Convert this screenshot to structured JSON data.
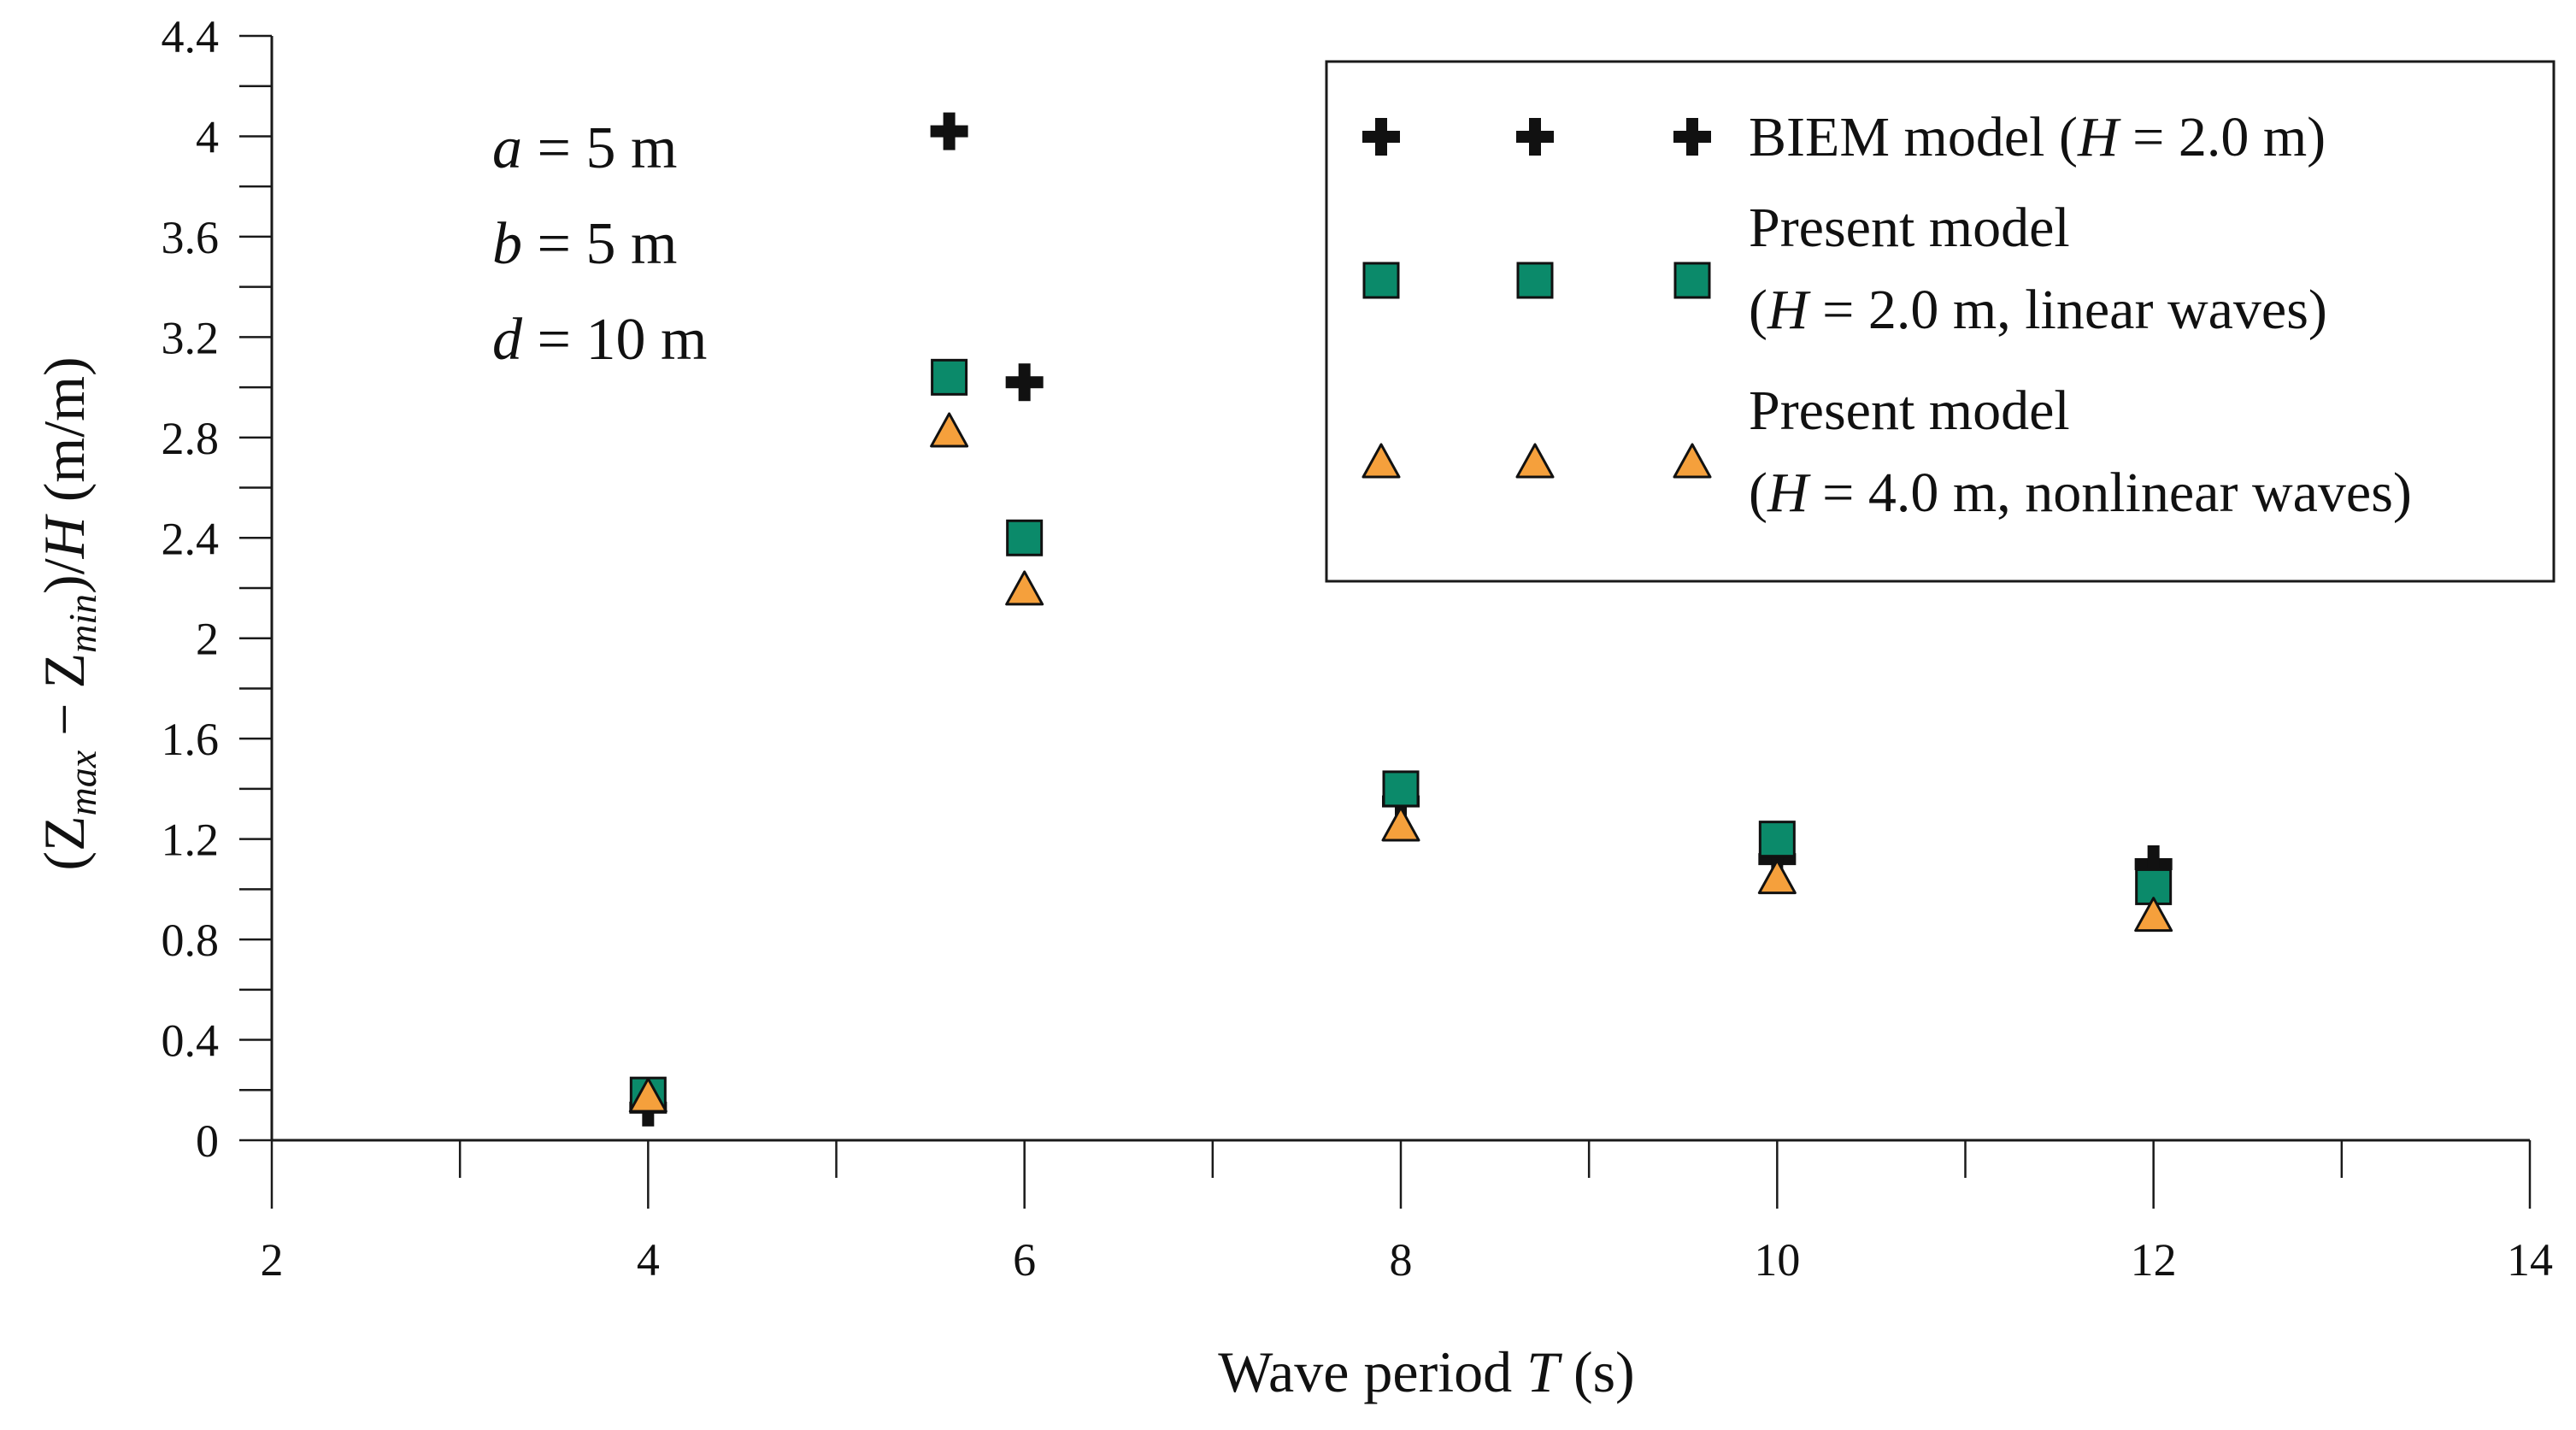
{
  "chart_data": {
    "type": "scatter",
    "title": "",
    "xlabel": {
      "prefix": "Wave period ",
      "var": "T",
      "suffix": " (s)"
    },
    "ylabel": {
      "open": "(Z",
      "max_sub": "max",
      "minus": " − Z",
      "min_sub": "min",
      "close": ")/",
      "var": "H",
      "unit": " (m/m)"
    },
    "xlim": [
      2,
      14
    ],
    "ylim": [
      0,
      4.4
    ],
    "xticks": [
      2,
      4,
      6,
      8,
      10,
      12,
      14
    ],
    "xtick_labels": [
      "2",
      "4",
      "6",
      "8",
      "10",
      "12",
      "14"
    ],
    "yticks": [
      0,
      0.4,
      0.8,
      1.2,
      1.6,
      2,
      2.4,
      2.8,
      3.2,
      3.6,
      4,
      4.4
    ],
    "ytick_labels": [
      "0",
      "0.4",
      "0.8",
      "1.2",
      "1.6",
      "2",
      "2.4",
      "2.8",
      "3.2",
      "3.6",
      "4",
      "4.4"
    ],
    "x_minor_step": 1,
    "y_minor_step": 0.2,
    "grid": false,
    "legend_position": "top-right",
    "annotations": [
      {
        "var": "a",
        "text": " = 5 m"
      },
      {
        "var": "b",
        "text": " = 5 m"
      },
      {
        "var": "d",
        "text": " = 10 m"
      }
    ],
    "series": [
      {
        "name": "BIEM model (H = 2.0 m)",
        "marker": "plus",
        "color": "#111111",
        "legend_lines": [
          [
            {
              "t": "BIEM model ("
            },
            {
              "t": "H",
              "i": true
            },
            {
              "t": " = 2.0 m)"
            }
          ]
        ],
        "points": [
          {
            "x": 4,
            "y": 0.13
          },
          {
            "x": 5.6,
            "y": 4.02
          },
          {
            "x": 6,
            "y": 3.02
          },
          {
            "x": 8,
            "y": 1.35
          },
          {
            "x": 10,
            "y": 1.12
          },
          {
            "x": 12,
            "y": 1.1
          }
        ]
      },
      {
        "name": "Present model (H = 2.0 m, linear waves)",
        "marker": "square",
        "color": "#0b8a6a",
        "legend_lines": [
          [
            {
              "t": "Present model"
            }
          ],
          [
            {
              "t": "("
            },
            {
              "t": "H",
              "i": true
            },
            {
              "t": " = 2.0 m, linear waves)"
            }
          ]
        ],
        "points": [
          {
            "x": 4,
            "y": 0.18
          },
          {
            "x": 5.6,
            "y": 3.04
          },
          {
            "x": 6,
            "y": 2.4
          },
          {
            "x": 8,
            "y": 1.4
          },
          {
            "x": 10,
            "y": 1.2
          },
          {
            "x": 12,
            "y": 1.01
          }
        ]
      },
      {
        "name": "Present model (H = 4.0 m, nonlinear waves)",
        "marker": "triangle",
        "color": "#f5a03c",
        "legend_lines": [
          [
            {
              "t": "Present model"
            }
          ],
          [
            {
              "t": "("
            },
            {
              "t": "H",
              "i": true
            },
            {
              "t": " = 4.0 m, nonlinear waves)"
            }
          ]
        ],
        "points": [
          {
            "x": 4,
            "y": 0.17
          },
          {
            "x": 5.6,
            "y": 2.82
          },
          {
            "x": 6,
            "y": 2.19
          },
          {
            "x": 8,
            "y": 1.25
          },
          {
            "x": 10,
            "y": 1.04
          },
          {
            "x": 12,
            "y": 0.89
          }
        ]
      }
    ]
  }
}
